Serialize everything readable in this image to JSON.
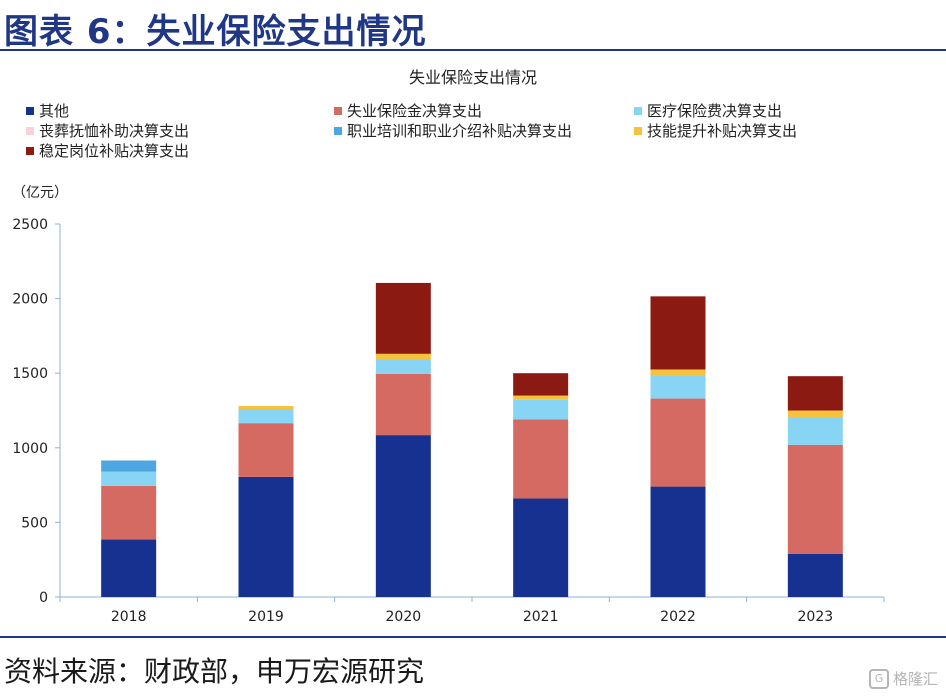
{
  "header": {
    "title": "图表 6：失业保险支出情况"
  },
  "source": {
    "text": "资料来源：财政部，申万宏源研究"
  },
  "watermark": {
    "text": "格隆汇",
    "logo_glyph": "G"
  },
  "chart_data": {
    "type": "bar",
    "stacked": true,
    "title": "失业保险支出情况",
    "unit_label": "（亿元）",
    "categories": [
      "2018",
      "2019",
      "2020",
      "2021",
      "2022",
      "2023"
    ],
    "ylim": [
      0,
      2500
    ],
    "yticks": [
      0,
      500,
      1000,
      1500,
      2000,
      2500
    ],
    "grid": false,
    "legend_position": "top",
    "series": [
      {
        "name": "其他",
        "color": "#16318f",
        "values": [
          385,
          805,
          1085,
          660,
          740,
          290
        ]
      },
      {
        "name": "失业保险金决算支出",
        "color": "#d46a62",
        "values": [
          360,
          360,
          410,
          530,
          590,
          730
        ]
      },
      {
        "name": "医疗保险费决算支出",
        "color": "#88d4f4",
        "values": [
          95,
          95,
          100,
          135,
          155,
          180
        ]
      },
      {
        "name": "丧葬抚恤补助决算支出",
        "color": "#f9d3dc",
        "values": [
          0,
          0,
          0,
          0,
          0,
          0
        ]
      },
      {
        "name": "职业培训和职业介绍补贴决算支出",
        "color": "#4ea6e0",
        "values": [
          75,
          0,
          0,
          0,
          0,
          0
        ]
      },
      {
        "name": "技能提升补贴决算支出",
        "color": "#f6c23e",
        "values": [
          0,
          20,
          35,
          25,
          40,
          50
        ]
      },
      {
        "name": "稳定岗位补贴决算支出",
        "color": "#8b1a12",
        "values": [
          0,
          0,
          475,
          150,
          490,
          230
        ]
      }
    ]
  }
}
